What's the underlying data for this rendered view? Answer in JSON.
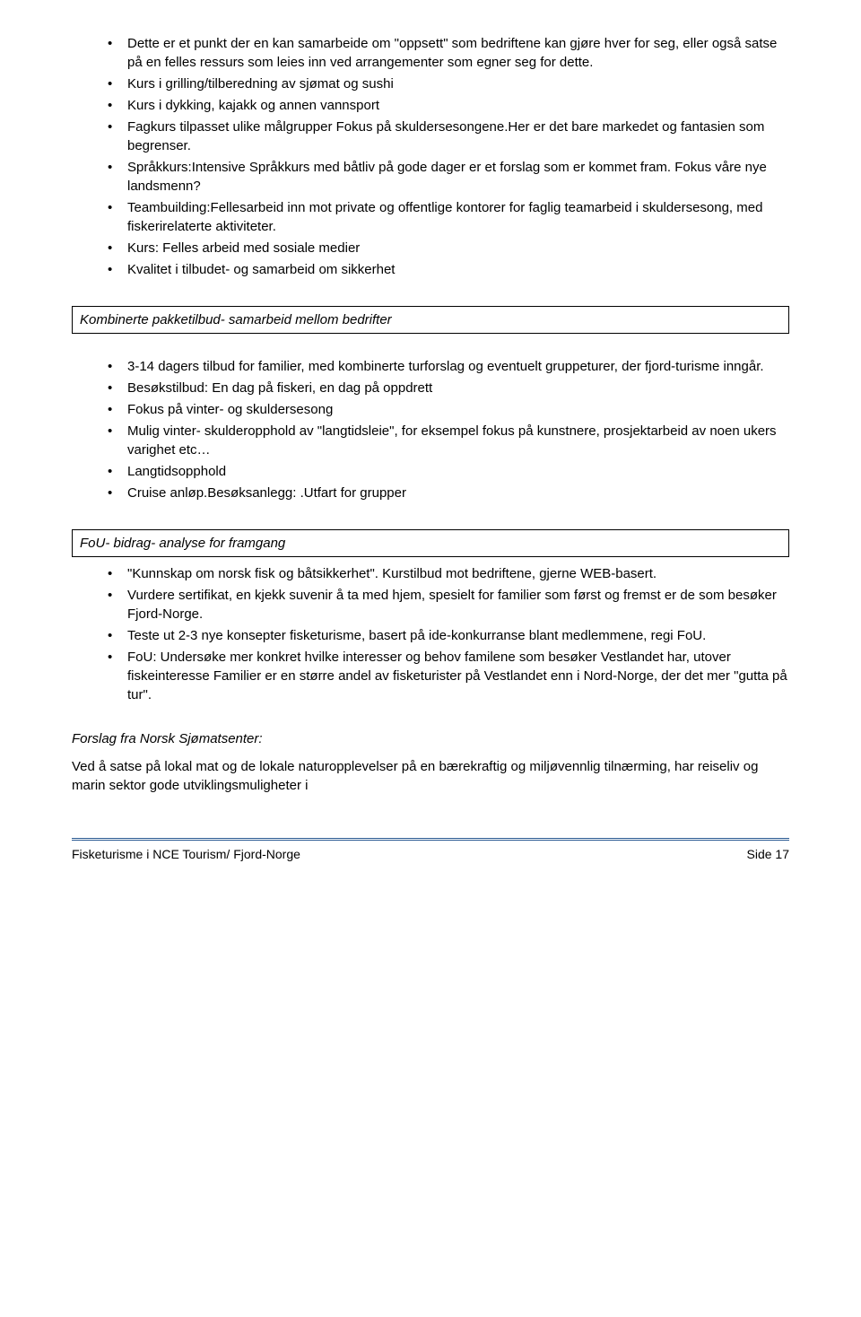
{
  "list1": [
    "Dette er et punkt der en kan samarbeide om \"oppsett\" som bedriftene kan gjøre hver for seg, eller også satse på en felles ressurs som leies inn ved arrangementer som egner seg for dette.",
    "Kurs i grilling/tilberedning av sjømat og sushi",
    "Kurs i dykking, kajakk og annen vannsport",
    "Fagkurs tilpasset ulike målgrupper Fokus på skuldersesongene.Her er det bare markedet og fantasien som begrenser.",
    "Språkkurs:Intensive Språkkurs med båtliv på gode dager er et forslag som er kommet fram.  Fokus våre nye landsmenn?",
    "Teambuilding:Fellesarbeid inn mot private og offentlige kontorer for faglig teamarbeid i skuldersesong, med fiskerirelaterte aktiviteter.",
    "Kurs: Felles arbeid med sosiale medier",
    "Kvalitet i tilbudet- og samarbeid om sikkerhet"
  ],
  "header1": "Kombinerte pakketilbud- samarbeid mellom bedrifter",
  "list2": [
    "3-14 dagers tilbud for familier, med kombinerte turforslag og eventuelt gruppeturer, der fjord-turisme inngår.",
    "Besøkstilbud: En dag på fiskeri, en dag på oppdrett",
    "Fokus på vinter- og skuldersesong",
    "Mulig vinter- skulderopphold av \"langtidsleie\", for eksempel fokus på kunstnere, prosjektarbeid av noen ukers varighet etc…",
    "Langtidsopphold",
    "Cruise anløp.Besøksanlegg: .Utfart for grupper"
  ],
  "header2": "FoU- bidrag- analyse for framgang",
  "list3": [
    "\"Kunnskap om norsk fisk og båtsikkerhet\". Kurstilbud mot bedriftene, gjerne WEB-basert.",
    "Vurdere sertifikat, en kjekk suvenir å ta med hjem, spesielt for familier som først og fremst er de som besøker Fjord-Norge.",
    "Teste ut 2-3 nye konsepter fisketurisme, basert på ide-konkurranse blant medlemmene, regi FoU.",
    "FoU: Undersøke mer konkret hvilke interesser og behov familene som besøker Vestlandet har, utover fiskeinteresse Familier er en større andel av fisketurister på Vestlandet enn i Nord-Norge, der det mer \"gutta på tur\"."
  ],
  "subheading": "Forslag fra Norsk Sjømatsenter:",
  "paragraph": "Ved å satse på lokal mat og de lokale naturopplevelser på en bærekraftig og miljøvennlig tilnærming, har reiseliv og marin sektor gode utviklingsmuligheter i",
  "footer_left": "Fisketurisme i NCE Tourism/ Fjord-Norge",
  "footer_right": "Side 17"
}
